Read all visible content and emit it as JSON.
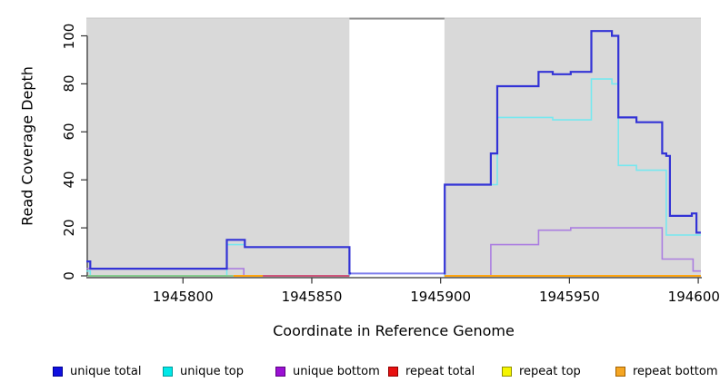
{
  "figure": {
    "background": "#ffffff",
    "plot_background": "#d9d9d9",
    "axis_color": "#333333",
    "masked_region_fill": "#ffffff",
    "masked_region_top_line_color": "#8a8a8a",
    "plot_top_edge_color": "#c4c4c4"
  },
  "chart_data": {
    "type": "line",
    "subtype": "step-coverage",
    "title": "",
    "xlabel": "Coordinate in Reference Genome",
    "ylabel": "Read Coverage Depth",
    "xlim": [
      1945762.5,
      1946001
    ],
    "ylim": [
      0,
      104.5
    ],
    "grid": "off",
    "legend_position": "bottom",
    "x_ticks": [
      {
        "coord": 1945800,
        "label": "1945800"
      },
      {
        "coord": 1945850,
        "label": "1945850"
      },
      {
        "coord": 1945900,
        "label": "1945900"
      },
      {
        "coord": 1945950,
        "label": "1945950"
      },
      {
        "coord": 1946000,
        "label": "1946000"
      }
    ],
    "y_ticks": [
      {
        "value": 0,
        "label": "0"
      },
      {
        "value": 20,
        "label": "20"
      },
      {
        "value": 40,
        "label": "40"
      },
      {
        "value": 60,
        "label": "60"
      },
      {
        "value": 80,
        "label": "80"
      },
      {
        "value": 100,
        "label": "100"
      }
    ],
    "masked_region": {
      "x_start": 1945864.6,
      "x_end": 1945901.5
    },
    "series": [
      {
        "name": "unique-bottom-left",
        "legend": "unique bottom",
        "color": "#ab7ee0",
        "width": 1.6,
        "points": [
          [
            1945762.5,
            3
          ],
          [
            1945823.6,
            0
          ],
          [
            1945864.6,
            0
          ]
        ]
      },
      {
        "name": "unique-bottom-right",
        "legend": "unique bottom",
        "color": "#ab7ee0",
        "width": 1.6,
        "points": [
          [
            1945901.5,
            0
          ],
          [
            1945919.5,
            13
          ],
          [
            1945938,
            19
          ],
          [
            1945950.5,
            20
          ],
          [
            1945986,
            7
          ],
          [
            1945998,
            2
          ],
          [
            1946001,
            2
          ]
        ]
      },
      {
        "name": "unique-top-left",
        "legend": "unique top",
        "color": "#76e8ef",
        "width": 1.6,
        "points": [
          [
            1945762.5,
            2
          ],
          [
            1945764,
            0
          ],
          [
            1945817,
            13
          ],
          [
            1945824,
            12
          ],
          [
            1945864.6,
            0
          ]
        ]
      },
      {
        "name": "unique-top-right",
        "legend": "unique top",
        "color": "#76e8ef",
        "width": 1.6,
        "points": [
          [
            1945901.4,
            0
          ],
          [
            1945901.6,
            38
          ],
          [
            1945922,
            66
          ],
          [
            1945943.5,
            65
          ],
          [
            1945958.5,
            82
          ],
          [
            1945966.5,
            80
          ],
          [
            1945969,
            46
          ],
          [
            1945976,
            44
          ],
          [
            1945987.6,
            17
          ],
          [
            1946001,
            17
          ]
        ]
      },
      {
        "name": "repeat-top-zero",
        "legend": "repeat top",
        "color": "#82c882",
        "width": 1.8,
        "points": [
          [
            1945763,
            0
          ],
          [
            1945819.6,
            0
          ]
        ]
      },
      {
        "name": "repeat-bottom-zero-left",
        "legend": "repeat bottom",
        "color": "#ffa510",
        "width": 2,
        "points": [
          [
            1945819.6,
            0
          ],
          [
            1945831,
            0
          ]
        ]
      },
      {
        "name": "repeat-total-zero",
        "legend": "repeat total",
        "color": "#d04a6e",
        "width": 1.8,
        "points": [
          [
            1945831,
            0
          ],
          [
            1945864.6,
            0
          ]
        ]
      },
      {
        "name": "repeat-bottom-zero-right",
        "legend": "repeat bottom",
        "color": "#ffa510",
        "width": 2,
        "points": [
          [
            1945901.5,
            0
          ],
          [
            1946001,
            0
          ]
        ]
      },
      {
        "name": "masked-gap-line",
        "legend": "unique total",
        "color": "#7d7dec",
        "width": 2,
        "points": [
          [
            1945865,
            1
          ],
          [
            1945901.5,
            1
          ]
        ]
      },
      {
        "name": "unique-total-left",
        "legend": "unique total",
        "color": "#3333d6",
        "width": 2.2,
        "points": [
          [
            1945762.5,
            6
          ],
          [
            1945764,
            3
          ],
          [
            1945817,
            15
          ],
          [
            1945824,
            12
          ],
          [
            1945864.6,
            1
          ],
          [
            1945865.2,
            1
          ]
        ]
      },
      {
        "name": "unique-total-right",
        "legend": "unique total",
        "color": "#3333d6",
        "width": 2.2,
        "points": [
          [
            1945901.3,
            1
          ],
          [
            1945901.6,
            38
          ],
          [
            1945919.5,
            51
          ],
          [
            1945922,
            79
          ],
          [
            1945938,
            85
          ],
          [
            1945943.5,
            84
          ],
          [
            1945950.5,
            85
          ],
          [
            1945958.5,
            102
          ],
          [
            1945966.5,
            100
          ],
          [
            1945969,
            66
          ],
          [
            1945976,
            64
          ],
          [
            1945986,
            51
          ],
          [
            1945987.6,
            50
          ],
          [
            1945989,
            25
          ],
          [
            1945997.5,
            26
          ],
          [
            1945999.3,
            18
          ],
          [
            1946001,
            18
          ]
        ]
      }
    ],
    "legend": [
      {
        "label": "unique total",
        "fill": "#1010e0",
        "border": "#000090"
      },
      {
        "label": "unique top",
        "fill": "#00e8e8",
        "border": "#009999"
      },
      {
        "label": "unique bottom",
        "fill": "#9b11d4",
        "border": "#5a0080"
      },
      {
        "label": "repeat total",
        "fill": "#e81010",
        "border": "#900000"
      },
      {
        "label": "repeat top",
        "fill": "#f5f500",
        "border": "#909000"
      },
      {
        "label": "repeat bottom",
        "fill": "#f5a623",
        "border": "#a06000"
      }
    ]
  }
}
